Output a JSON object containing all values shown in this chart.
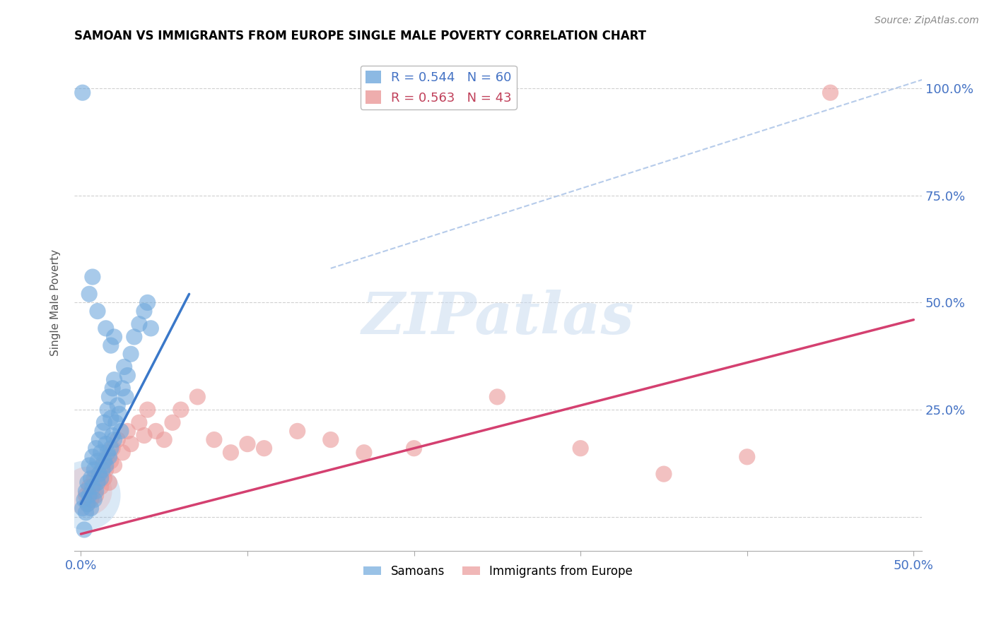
{
  "title": "SAMOAN VS IMMIGRANTS FROM EUROPE SINGLE MALE POVERTY CORRELATION CHART",
  "source": "Source: ZipAtlas.com",
  "ylabel_label": "Single Male Poverty",
  "xlim": [
    -0.004,
    0.505
  ],
  "ylim": [
    -0.08,
    1.08
  ],
  "x_ticks": [
    0.0,
    0.1,
    0.2,
    0.3,
    0.4,
    0.5
  ],
  "x_tick_labels": [
    "0.0%",
    "",
    "",
    "",
    "",
    "50.0%"
  ],
  "y_ticks": [
    0.0,
    0.25,
    0.5,
    0.75,
    1.0
  ],
  "y_tick_labels": [
    "",
    "25.0%",
    "50.0%",
    "75.0%",
    "100.0%"
  ],
  "watermark_text": "ZIPatlas",
  "samoans_color": "#6fa8dc",
  "europe_color": "#ea9999",
  "background_color": "#ffffff",
  "grid_color": "#d0d0d0",
  "title_color": "#000000",
  "axis_label_color": "#555555",
  "tick_label_color": "#4472c4",
  "pink_tick_color": "#c0405a",
  "samoans_scatter": [
    [
      0.001,
      0.02
    ],
    [
      0.002,
      0.04
    ],
    [
      0.003,
      0.01
    ],
    [
      0.003,
      0.06
    ],
    [
      0.004,
      0.03
    ],
    [
      0.004,
      0.08
    ],
    [
      0.005,
      0.05
    ],
    [
      0.005,
      0.12
    ],
    [
      0.006,
      0.02
    ],
    [
      0.006,
      0.09
    ],
    [
      0.007,
      0.07
    ],
    [
      0.007,
      0.14
    ],
    [
      0.008,
      0.04
    ],
    [
      0.008,
      0.11
    ],
    [
      0.009,
      0.06
    ],
    [
      0.009,
      0.16
    ],
    [
      0.01,
      0.08
    ],
    [
      0.01,
      0.13
    ],
    [
      0.011,
      0.1
    ],
    [
      0.011,
      0.18
    ],
    [
      0.012,
      0.09
    ],
    [
      0.012,
      0.15
    ],
    [
      0.013,
      0.11
    ],
    [
      0.013,
      0.2
    ],
    [
      0.014,
      0.13
    ],
    [
      0.014,
      0.22
    ],
    [
      0.015,
      0.12
    ],
    [
      0.015,
      0.17
    ],
    [
      0.016,
      0.15
    ],
    [
      0.016,
      0.25
    ],
    [
      0.017,
      0.14
    ],
    [
      0.017,
      0.28
    ],
    [
      0.018,
      0.16
    ],
    [
      0.018,
      0.23
    ],
    [
      0.019,
      0.19
    ],
    [
      0.019,
      0.3
    ],
    [
      0.02,
      0.18
    ],
    [
      0.02,
      0.32
    ],
    [
      0.021,
      0.22
    ],
    [
      0.022,
      0.26
    ],
    [
      0.023,
      0.24
    ],
    [
      0.024,
      0.2
    ],
    [
      0.025,
      0.3
    ],
    [
      0.026,
      0.35
    ],
    [
      0.027,
      0.28
    ],
    [
      0.028,
      0.33
    ],
    [
      0.03,
      0.38
    ],
    [
      0.032,
      0.42
    ],
    [
      0.035,
      0.45
    ],
    [
      0.038,
      0.48
    ],
    [
      0.04,
      0.5
    ],
    [
      0.042,
      0.44
    ],
    [
      0.005,
      0.52
    ],
    [
      0.007,
      0.56
    ],
    [
      0.01,
      0.48
    ],
    [
      0.015,
      0.44
    ],
    [
      0.018,
      0.4
    ],
    [
      0.02,
      0.42
    ],
    [
      0.001,
      0.99
    ],
    [
      0.002,
      -0.03
    ]
  ],
  "europe_scatter": [
    [
      0.003,
      0.05
    ],
    [
      0.004,
      0.03
    ],
    [
      0.005,
      0.07
    ],
    [
      0.006,
      0.04
    ],
    [
      0.007,
      0.06
    ],
    [
      0.008,
      0.09
    ],
    [
      0.009,
      0.05
    ],
    [
      0.01,
      0.08
    ],
    [
      0.011,
      0.1
    ],
    [
      0.012,
      0.07
    ],
    [
      0.013,
      0.12
    ],
    [
      0.014,
      0.09
    ],
    [
      0.015,
      0.11
    ],
    [
      0.016,
      0.14
    ],
    [
      0.017,
      0.08
    ],
    [
      0.018,
      0.13
    ],
    [
      0.019,
      0.16
    ],
    [
      0.02,
      0.12
    ],
    [
      0.022,
      0.18
    ],
    [
      0.025,
      0.15
    ],
    [
      0.028,
      0.2
    ],
    [
      0.03,
      0.17
    ],
    [
      0.035,
      0.22
    ],
    [
      0.038,
      0.19
    ],
    [
      0.04,
      0.25
    ],
    [
      0.045,
      0.2
    ],
    [
      0.05,
      0.18
    ],
    [
      0.055,
      0.22
    ],
    [
      0.06,
      0.25
    ],
    [
      0.07,
      0.28
    ],
    [
      0.08,
      0.18
    ],
    [
      0.09,
      0.15
    ],
    [
      0.1,
      0.17
    ],
    [
      0.11,
      0.16
    ],
    [
      0.13,
      0.2
    ],
    [
      0.15,
      0.18
    ],
    [
      0.17,
      0.15
    ],
    [
      0.2,
      0.16
    ],
    [
      0.25,
      0.28
    ],
    [
      0.3,
      0.16
    ],
    [
      0.35,
      0.1
    ],
    [
      0.4,
      0.14
    ],
    [
      0.45,
      0.99
    ]
  ],
  "samoans_line_x": [
    0.0,
    0.065
  ],
  "samoans_line_y": [
    0.03,
    0.52
  ],
  "europe_line_x": [
    0.0,
    0.5
  ],
  "europe_line_y": [
    -0.04,
    0.46
  ],
  "diag_line_x": [
    0.15,
    0.505
  ],
  "diag_line_y": [
    0.58,
    1.02
  ]
}
